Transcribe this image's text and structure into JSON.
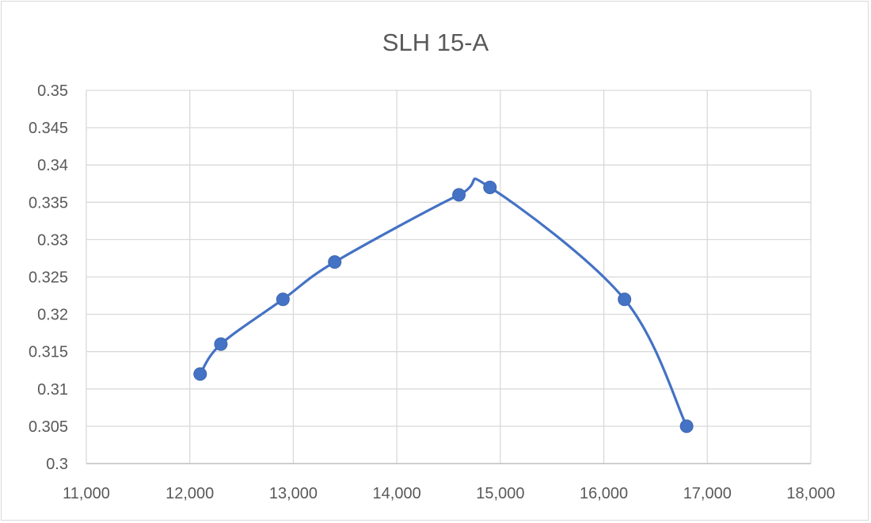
{
  "chart_data": {
    "type": "scatter",
    "title": "SLH 15-A",
    "xlabel": "",
    "ylabel": "",
    "xlim": [
      11000,
      18000
    ],
    "ylim": [
      0.3,
      0.35
    ],
    "x_ticks": [
      "11,000",
      "12,000",
      "13,000",
      "14,000",
      "15,000",
      "16,000",
      "17,000",
      "18,000"
    ],
    "y_ticks": [
      "0.3",
      "0.305",
      "0.31",
      "0.315",
      "0.32",
      "0.325",
      "0.33",
      "0.335",
      "0.34",
      "0.345",
      "0.35"
    ],
    "grid": true,
    "smooth_line": true,
    "legend": "none",
    "series": [
      {
        "color": "#4472c4",
        "points": [
          {
            "x": 12100,
            "y": 0.312
          },
          {
            "x": 12300,
            "y": 0.316
          },
          {
            "x": 12900,
            "y": 0.322
          },
          {
            "x": 13400,
            "y": 0.327
          },
          {
            "x": 14600,
            "y": 0.336
          },
          {
            "x": 14900,
            "y": 0.337
          },
          {
            "x": 16200,
            "y": 0.322
          },
          {
            "x": 16800,
            "y": 0.305
          }
        ]
      }
    ]
  }
}
